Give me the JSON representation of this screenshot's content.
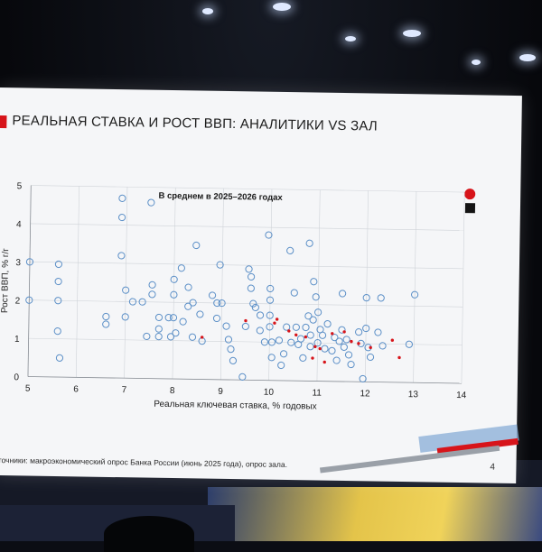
{
  "slide": {
    "title": "РЕАЛЬНАЯ СТАВКА И РОСТ ВВП: АНАЛИТИКИ VS ЗАЛ",
    "source": "сточники: макроэкономический опрос Банка России (июнь 2025 года), опрос зала.",
    "page_number": "4"
  },
  "colors": {
    "accent_red": "#d7141a",
    "analyst_blue": "#5b8fc7",
    "grid": "#cfd3d8"
  },
  "chart_data": {
    "type": "scatter",
    "title": "В среднем в 2025–2026 годах",
    "xlabel": "Реальная ключевая ставка, % годовых",
    "ylabel": "Рост ВВП, % г/г",
    "xlim": [
      5,
      14
    ],
    "ylim": [
      0,
      5
    ],
    "xticks": [
      5,
      6,
      7,
      8,
      9,
      10,
      11,
      12,
      13,
      14
    ],
    "yticks": [
      0,
      1,
      2,
      3,
      4,
      5
    ],
    "grid": true,
    "series": [
      {
        "marker": "circle-open",
        "points": [
          [
            5.0,
            3.0
          ],
          [
            5.0,
            2.0
          ],
          [
            5.6,
            2.95
          ],
          [
            5.6,
            2.5
          ],
          [
            5.6,
            2.0
          ],
          [
            5.6,
            1.2
          ],
          [
            5.65,
            0.5
          ],
          [
            6.6,
            1.6
          ],
          [
            6.6,
            1.4
          ],
          [
            6.9,
            4.7
          ],
          [
            6.9,
            4.2
          ],
          [
            6.9,
            3.2
          ],
          [
            7.0,
            2.3
          ],
          [
            7.0,
            1.6
          ],
          [
            7.15,
            2.0
          ],
          [
            7.35,
            2.0
          ],
          [
            7.45,
            1.1
          ],
          [
            7.5,
            4.6
          ],
          [
            7.55,
            2.45
          ],
          [
            7.55,
            2.2
          ],
          [
            7.7,
            1.6
          ],
          [
            7.7,
            1.3
          ],
          [
            7.7,
            1.1
          ],
          [
            7.9,
            1.6
          ],
          [
            7.95,
            1.1
          ],
          [
            8.0,
            2.6
          ],
          [
            8.0,
            2.2
          ],
          [
            8.0,
            1.6
          ],
          [
            8.05,
            1.2
          ],
          [
            8.15,
            2.9
          ],
          [
            8.2,
            1.5
          ],
          [
            8.3,
            1.9
          ],
          [
            8.3,
            2.4
          ],
          [
            8.4,
            2.0
          ],
          [
            8.4,
            1.1
          ],
          [
            8.45,
            3.5
          ],
          [
            8.55,
            1.7
          ],
          [
            8.6,
            1.0
          ],
          [
            8.8,
            2.2
          ],
          [
            8.9,
            2.0
          ],
          [
            8.9,
            1.6
          ],
          [
            8.95,
            3.0
          ],
          [
            9.0,
            2.0
          ],
          [
            9.1,
            1.4
          ],
          [
            9.15,
            1.05
          ],
          [
            9.2,
            0.8
          ],
          [
            9.25,
            0.5
          ],
          [
            9.5,
            1.4
          ],
          [
            9.55,
            2.9
          ],
          [
            9.6,
            2.7
          ],
          [
            9.6,
            2.4
          ],
          [
            9.65,
            2.0
          ],
          [
            9.7,
            1.9
          ],
          [
            9.8,
            1.7
          ],
          [
            9.8,
            1.3
          ],
          [
            9.9,
            1.0
          ],
          [
            9.95,
            3.8
          ],
          [
            10.0,
            2.4
          ],
          [
            10.0,
            2.1
          ],
          [
            10.0,
            1.7
          ],
          [
            10.0,
            1.4
          ],
          [
            10.05,
            1.0
          ],
          [
            10.05,
            0.6
          ],
          [
            10.2,
            1.05
          ],
          [
            10.25,
            0.4
          ],
          [
            10.3,
            0.7
          ],
          [
            10.35,
            1.4
          ],
          [
            10.4,
            3.4
          ],
          [
            10.45,
            1.0
          ],
          [
            10.5,
            2.3
          ],
          [
            10.55,
            1.4
          ],
          [
            10.6,
            0.95
          ],
          [
            10.65,
            1.1
          ],
          [
            10.7,
            0.6
          ],
          [
            10.75,
            1.4
          ],
          [
            10.8,
            3.6
          ],
          [
            10.8,
            1.7
          ],
          [
            10.85,
            1.2
          ],
          [
            10.85,
            0.9
          ],
          [
            10.9,
            2.6
          ],
          [
            10.9,
            1.6
          ],
          [
            10.95,
            2.2
          ],
          [
            11.0,
            1.8
          ],
          [
            11.0,
            1.0
          ],
          [
            11.05,
            1.35
          ],
          [
            11.1,
            1.2
          ],
          [
            11.15,
            0.85
          ],
          [
            11.2,
            1.5
          ],
          [
            11.3,
            0.8
          ],
          [
            11.35,
            1.15
          ],
          [
            11.4,
            0.55
          ],
          [
            11.45,
            1.05
          ],
          [
            11.5,
            2.3
          ],
          [
            11.5,
            1.35
          ],
          [
            11.55,
            0.9
          ],
          [
            11.6,
            1.1
          ],
          [
            11.65,
            0.7
          ],
          [
            11.7,
            0.45
          ],
          [
            11.85,
            1.3
          ],
          [
            11.9,
            1.0
          ],
          [
            12.0,
            2.2
          ],
          [
            12.0,
            1.4
          ],
          [
            12.05,
            0.9
          ],
          [
            12.1,
            0.65
          ],
          [
            12.25,
            1.3
          ],
          [
            12.3,
            2.2
          ],
          [
            12.35,
            0.95
          ],
          [
            12.9,
            1.0
          ],
          [
            13.0,
            2.3
          ],
          [
            11.95,
            0.08
          ],
          [
            9.45,
            0.08
          ]
        ]
      },
      {
        "marker": "dot-filled",
        "points": [
          [
            8.6,
            1.1
          ],
          [
            9.5,
            1.55
          ],
          [
            10.15,
            1.6
          ],
          [
            10.4,
            1.3
          ],
          [
            10.55,
            1.2
          ],
          [
            10.75,
            1.15
          ],
          [
            10.9,
            0.6
          ],
          [
            10.95,
            0.9
          ],
          [
            11.15,
            0.5
          ],
          [
            11.3,
            1.25
          ],
          [
            11.55,
            1.3
          ],
          [
            11.7,
            1.05
          ],
          [
            11.85,
            1.0
          ],
          [
            12.1,
            0.9
          ],
          [
            12.55,
            1.1
          ],
          [
            12.7,
            0.65
          ],
          [
            11.05,
            0.85
          ],
          [
            10.1,
            1.5
          ]
        ]
      }
    ]
  }
}
